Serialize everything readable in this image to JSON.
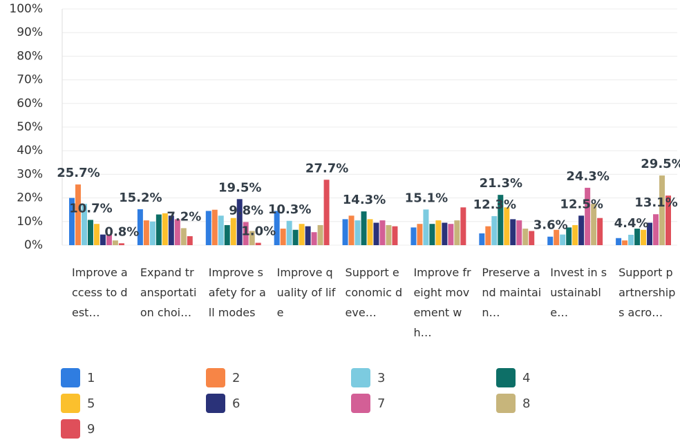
{
  "chart_data": {
    "type": "bar",
    "categories": [
      "Improve access to dest…",
      "Expand transportation choi…",
      "Improve safety for all modes",
      "Improve quality of life",
      "Support economic deve…",
      "Improve freight movement wh…",
      "Preserve and maintain…",
      "Invest in sustainable…",
      "Support partnerships acro…"
    ],
    "series": [
      {
        "name": "1",
        "color": "#2f7de1",
        "values": [
          20,
          15.2,
          14.5,
          14.5,
          11,
          7.5,
          5,
          3.6,
          3
        ],
        "value_labels": [
          null,
          "15.2%",
          null,
          null,
          null,
          null,
          null,
          "3.6%",
          null
        ]
      },
      {
        "name": "2",
        "color": "#f78546",
        "values": [
          25.7,
          10.5,
          15,
          7,
          12.5,
          9,
          8,
          6.5,
          2
        ],
        "value_labels": [
          "25.7%",
          null,
          null,
          null,
          null,
          null,
          null,
          null,
          null
        ]
      },
      {
        "name": "3",
        "color": "#7ccbe0",
        "values": [
          17.5,
          10,
          12.5,
          10.3,
          10.5,
          15.1,
          12.3,
          4.5,
          4.4
        ],
        "value_labels": [
          null,
          null,
          null,
          "10.3%",
          null,
          "15.1%",
          "12.3%",
          null,
          "4.4%"
        ]
      },
      {
        "name": "4",
        "color": "#0d6f67",
        "values": [
          10.7,
          13,
          8.5,
          6.5,
          14.3,
          9,
          21.3,
          7.5,
          7
        ],
        "value_labels": [
          "10.7%",
          null,
          null,
          null,
          "14.3%",
          null,
          "21.3%",
          null,
          null
        ]
      },
      {
        "name": "5",
        "color": "#fbc02d",
        "values": [
          9,
          13.5,
          11.5,
          9,
          11,
          10.5,
          16,
          8.5,
          6.5
        ],
        "value_labels": [
          null,
          null,
          null,
          null,
          null,
          null,
          null,
          null,
          null
        ]
      },
      {
        "name": "6",
        "color": "#2a3279",
        "values": [
          4.5,
          12.5,
          19.5,
          8,
          9.5,
          9.5,
          11,
          12.5,
          9.5
        ],
        "value_labels": [
          null,
          null,
          "19.5%",
          null,
          null,
          null,
          null,
          "12.5%",
          null
        ]
      },
      {
        "name": "7",
        "color": "#d35f96",
        "values": [
          4.5,
          11,
          9.8,
          5.5,
          10.5,
          9,
          10.5,
          24.3,
          13.1
        ],
        "value_labels": [
          null,
          null,
          "9.8%",
          null,
          null,
          null,
          null,
          "24.3%",
          "13.1%"
        ]
      },
      {
        "name": "8",
        "color": "#c7b57b",
        "values": [
          2,
          7.2,
          6,
          8.5,
          8.5,
          10.5,
          7,
          17.5,
          29.5
        ],
        "value_labels": [
          null,
          "7.2%",
          null,
          null,
          null,
          null,
          null,
          null,
          "29.5%"
        ]
      },
      {
        "name": "9",
        "color": "#df4f5a",
        "values": [
          0.8,
          3.8,
          1.0,
          27.7,
          8,
          16,
          6,
          11.5,
          21
        ],
        "value_labels": [
          "0.8%",
          null,
          "1.0%",
          "27.7%",
          null,
          null,
          null,
          null,
          null
        ]
      }
    ],
    "ylim": [
      0,
      100
    ],
    "yticks": [
      {
        "value": 0,
        "label": "0%"
      },
      {
        "value": 10,
        "label": "10%"
      },
      {
        "value": 20,
        "label": "20%"
      },
      {
        "value": 30,
        "label": "30%"
      },
      {
        "value": 40,
        "label": "40%"
      },
      {
        "value": 50,
        "label": "50%"
      },
      {
        "value": 60,
        "label": "60%"
      },
      {
        "value": 70,
        "label": "70%"
      },
      {
        "value": 80,
        "label": "80%"
      },
      {
        "value": 90,
        "label": "90%"
      },
      {
        "value": 100,
        "label": "100%"
      }
    ],
    "grid": true
  }
}
